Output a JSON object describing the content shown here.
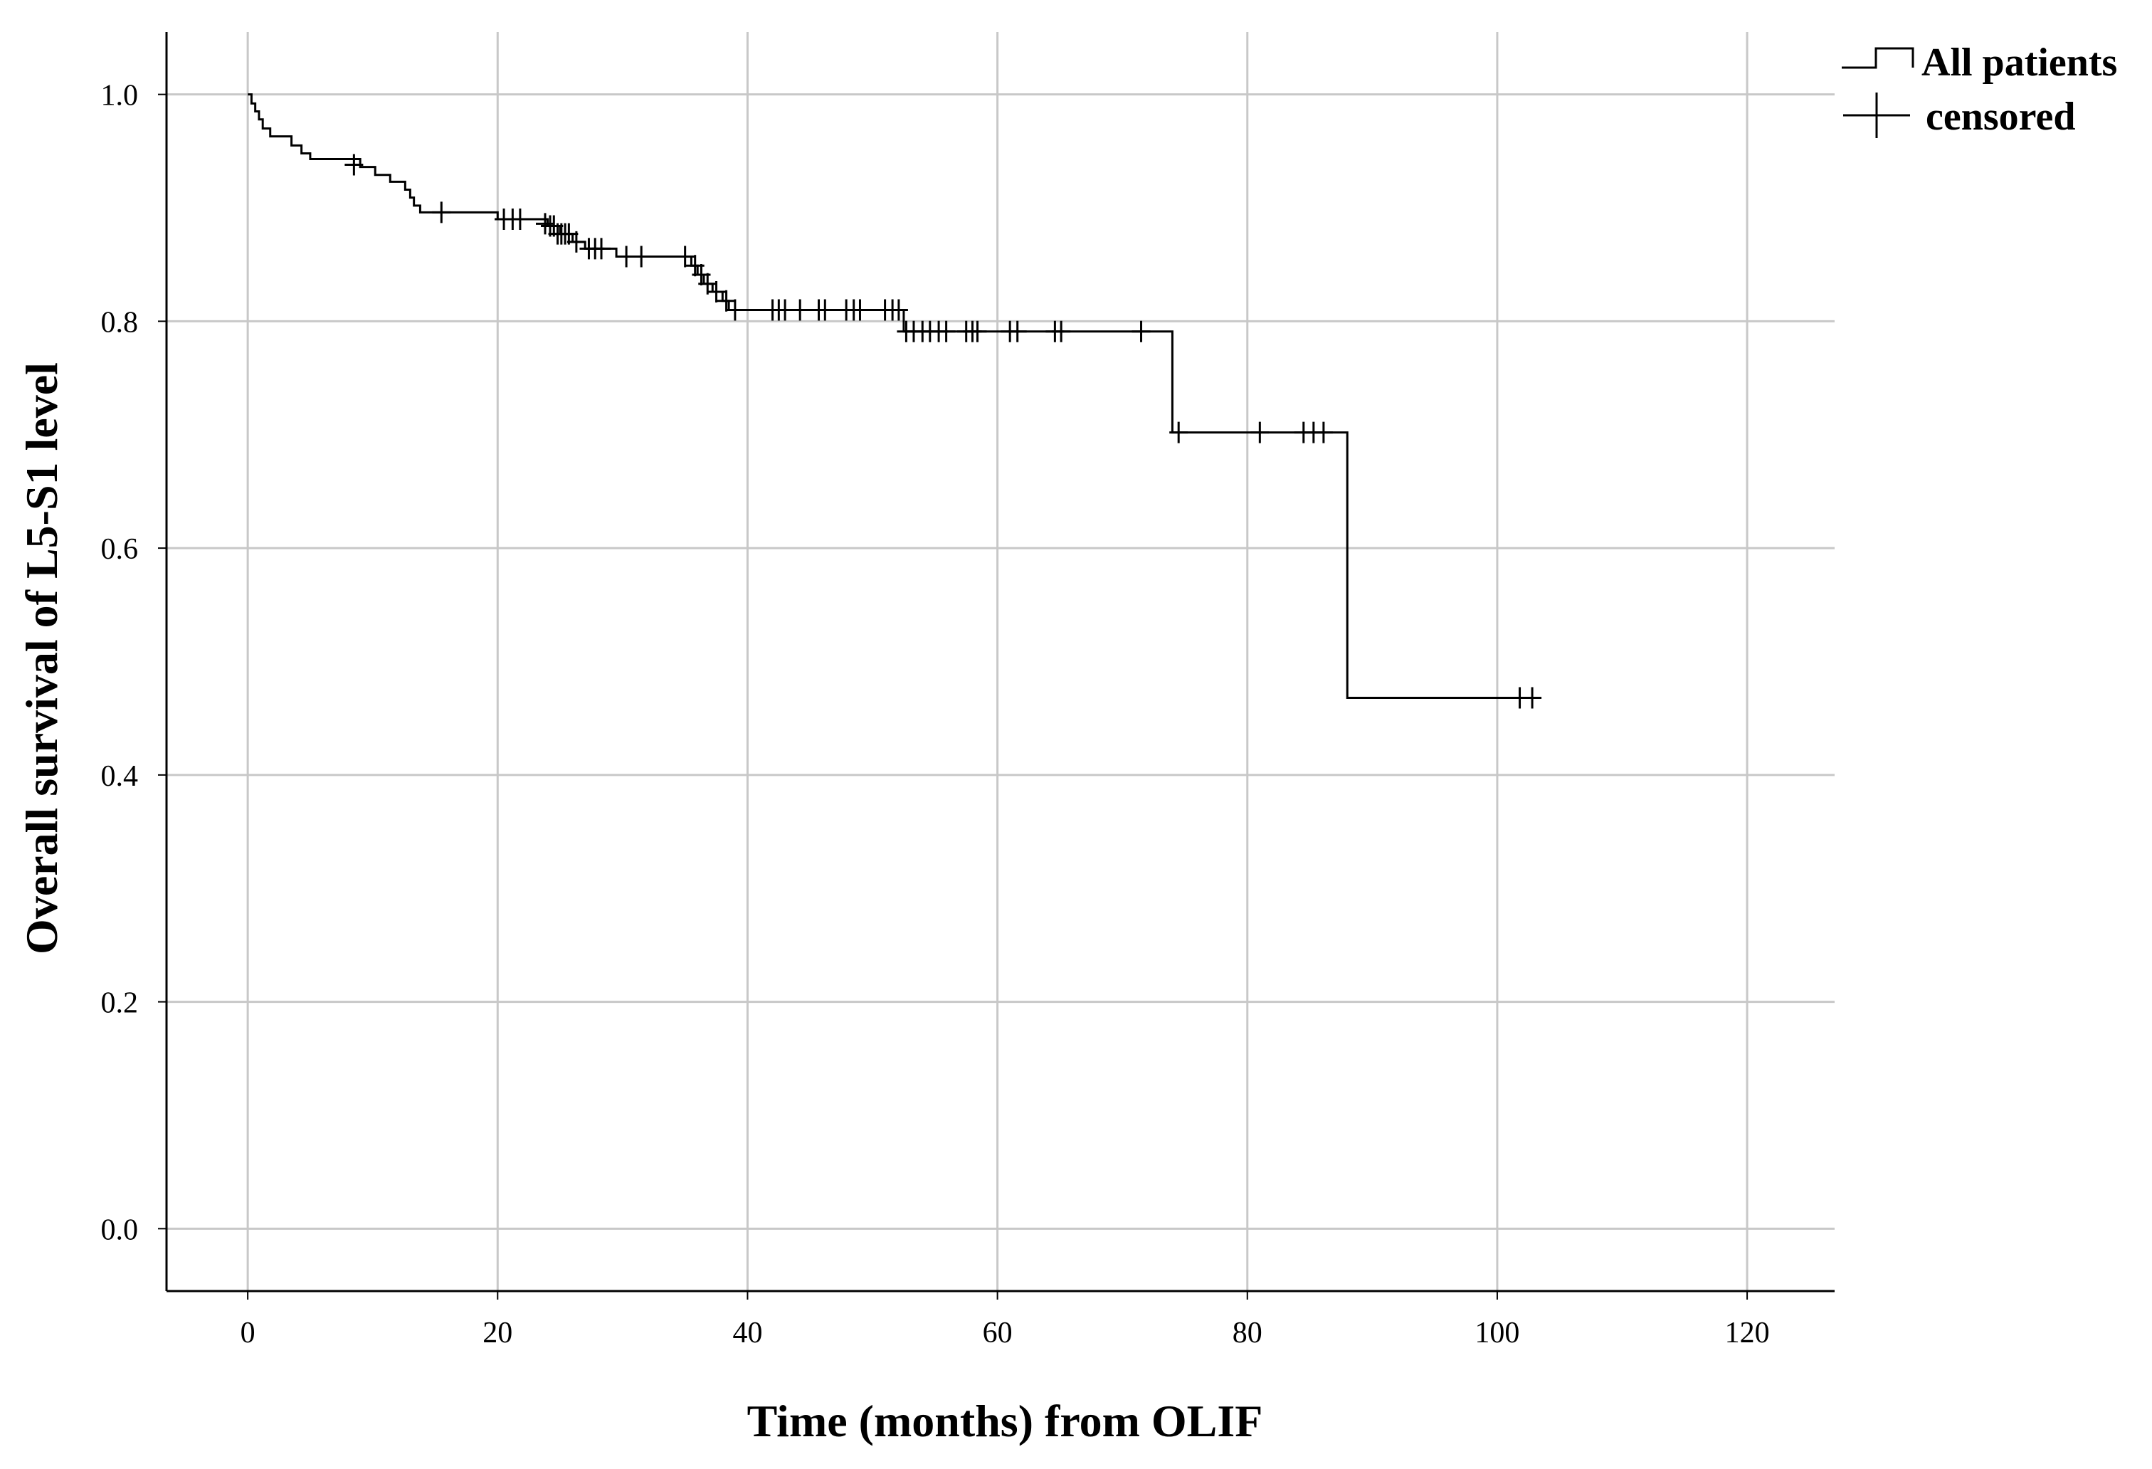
{
  "chart_data": {
    "type": "line",
    "subtype": "kaplan-meier",
    "title": "",
    "xlabel": "Time (months) from OLIF",
    "ylabel": "Overall survival of L5-S1 level",
    "xlim": [
      -6.5,
      127
    ],
    "ylim": [
      -0.055,
      1.055
    ],
    "x_ticks": [
      "0",
      "20",
      "40",
      "60",
      "80",
      "100",
      "120"
    ],
    "y_ticks": [
      "0.0",
      "0.2",
      "0.4",
      "0.6",
      "0.8",
      "1.0"
    ],
    "grid": true,
    "legend_position": "top-right",
    "legend": [
      {
        "label": "All patients",
        "symbol": "step-line"
      },
      {
        "label": "censored",
        "symbol": "plus"
      }
    ],
    "series": [
      {
        "name": "All patients",
        "steps": [
          [
            0,
            1.0
          ],
          [
            0.3,
            0.992
          ],
          [
            0.6,
            0.985
          ],
          [
            0.9,
            0.978
          ],
          [
            1.2,
            0.97
          ],
          [
            1.8,
            0.963
          ],
          [
            3.5,
            0.955
          ],
          [
            4.3,
            0.948
          ],
          [
            5.0,
            0.943
          ],
          [
            9.0,
            0.936
          ],
          [
            10.2,
            0.929
          ],
          [
            11.4,
            0.923
          ],
          [
            12.6,
            0.916
          ],
          [
            13.0,
            0.909
          ],
          [
            13.3,
            0.902
          ],
          [
            13.8,
            0.896
          ],
          [
            20.0,
            0.89
          ],
          [
            24.0,
            0.884
          ],
          [
            25.0,
            0.877
          ],
          [
            26.0,
            0.87
          ],
          [
            27.0,
            0.864
          ],
          [
            29.5,
            0.857
          ],
          [
            35.5,
            0.849
          ],
          [
            36.0,
            0.841
          ],
          [
            36.5,
            0.833
          ],
          [
            37.2,
            0.826
          ],
          [
            38.0,
            0.818
          ],
          [
            38.5,
            0.81
          ],
          [
            52.5,
            0.791
          ],
          [
            74.0,
            0.702
          ],
          [
            88.0,
            0.468
          ],
          [
            103.5,
            0.468
          ]
        ],
        "censored": [
          [
            8.5,
            0.938
          ],
          [
            15.5,
            0.896
          ],
          [
            20.5,
            0.89
          ],
          [
            21.2,
            0.89
          ],
          [
            21.8,
            0.89
          ],
          [
            23.8,
            0.886
          ],
          [
            24.2,
            0.884
          ],
          [
            24.5,
            0.884
          ],
          [
            24.8,
            0.877
          ],
          [
            25.1,
            0.877
          ],
          [
            25.4,
            0.877
          ],
          [
            25.7,
            0.877
          ],
          [
            26.3,
            0.87
          ],
          [
            27.3,
            0.864
          ],
          [
            27.8,
            0.864
          ],
          [
            28.3,
            0.864
          ],
          [
            30.3,
            0.857
          ],
          [
            31.5,
            0.857
          ],
          [
            35.0,
            0.857
          ],
          [
            35.8,
            0.849
          ],
          [
            36.3,
            0.841
          ],
          [
            36.8,
            0.833
          ],
          [
            37.5,
            0.826
          ],
          [
            38.3,
            0.818
          ],
          [
            39.0,
            0.81
          ],
          [
            42.0,
            0.81
          ],
          [
            42.5,
            0.81
          ],
          [
            43.0,
            0.81
          ],
          [
            44.2,
            0.81
          ],
          [
            45.7,
            0.81
          ],
          [
            46.2,
            0.81
          ],
          [
            47.9,
            0.81
          ],
          [
            48.5,
            0.81
          ],
          [
            49.0,
            0.81
          ],
          [
            51.0,
            0.81
          ],
          [
            51.6,
            0.81
          ],
          [
            52.1,
            0.81
          ],
          [
            52.7,
            0.791
          ],
          [
            53.3,
            0.791
          ],
          [
            54.0,
            0.791
          ],
          [
            54.6,
            0.791
          ],
          [
            55.3,
            0.791
          ],
          [
            55.9,
            0.791
          ],
          [
            57.5,
            0.791
          ],
          [
            58.0,
            0.791
          ],
          [
            58.4,
            0.791
          ],
          [
            61.0,
            0.791
          ],
          [
            61.6,
            0.791
          ],
          [
            64.6,
            0.791
          ],
          [
            65.1,
            0.791
          ],
          [
            71.5,
            0.791
          ],
          [
            74.5,
            0.702
          ],
          [
            81.0,
            0.702
          ],
          [
            84.5,
            0.702
          ],
          [
            85.3,
            0.702
          ],
          [
            86.1,
            0.702
          ],
          [
            101.8,
            0.468
          ],
          [
            102.8,
            0.468
          ]
        ]
      }
    ]
  }
}
